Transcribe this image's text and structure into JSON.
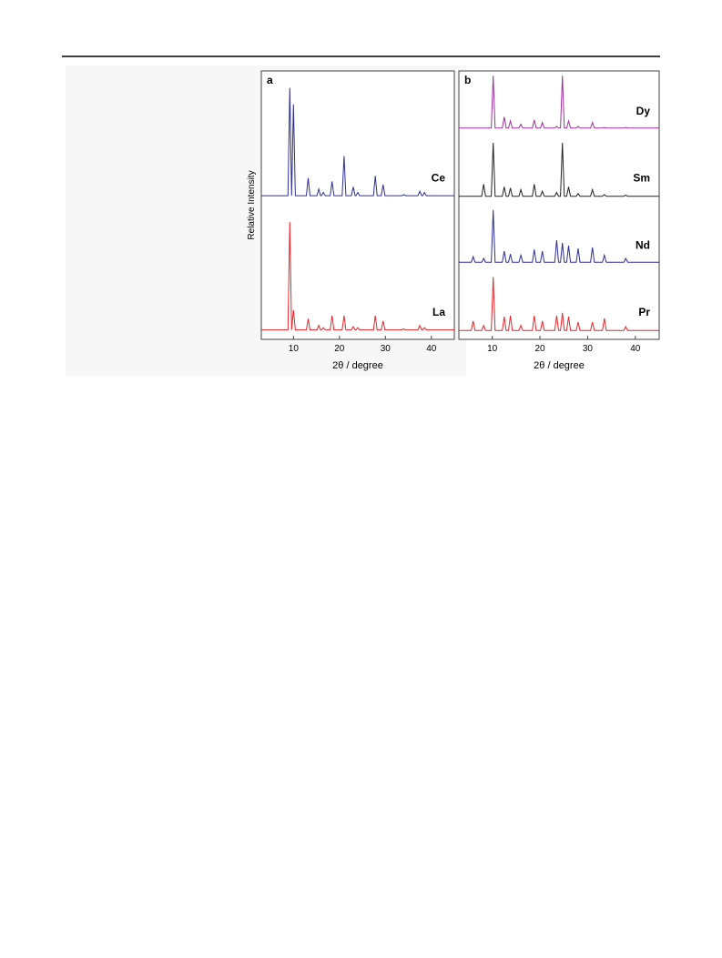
{
  "chart_data": [
    {
      "type": "line",
      "title": "a",
      "xlabel": "2θ / degree",
      "ylabel": "Relative Intensity",
      "xlim": [
        3,
        45
      ],
      "xticks": [
        10,
        20,
        30,
        40
      ],
      "series": [
        {
          "name": "Ce",
          "color": "#2e2e96",
          "x": [
            3,
            8.8,
            9.2,
            9.6,
            10.0,
            10.4,
            12.8,
            13.2,
            13.6,
            15.1,
            15.5,
            15.9,
            16.1,
            16.5,
            16.9,
            18.0,
            18.4,
            18.8,
            20.6,
            21.0,
            21.4,
            22.6,
            23.0,
            23.4,
            23.6,
            24.0,
            24.4,
            27.4,
            27.8,
            28.2,
            29.1,
            29.5,
            29.9,
            33.6,
            34.0,
            34.4,
            37.1,
            37.5,
            37.9,
            38.1,
            38.5,
            38.9,
            45
          ],
          "values": [
            2,
            2,
            100,
            2,
            85,
            2,
            2,
            18,
            2,
            2,
            8,
            2,
            2,
            5,
            2,
            2,
            15,
            2,
            2,
            38,
            2,
            2,
            10,
            2,
            2,
            5,
            2,
            2,
            20,
            2,
            2,
            12,
            2,
            2,
            3,
            2,
            2,
            6,
            2,
            2,
            5,
            2,
            2
          ]
        },
        {
          "name": "La",
          "color": "#e8262b",
          "x": [
            3,
            8.8,
            9.2,
            9.6,
            10.0,
            10.4,
            12.8,
            13.2,
            13.6,
            15.1,
            15.5,
            15.9,
            16.1,
            16.5,
            16.9,
            18.0,
            18.4,
            18.8,
            20.6,
            21.0,
            21.4,
            22.6,
            23.0,
            23.4,
            23.6,
            24.0,
            24.4,
            27.4,
            27.8,
            28.2,
            29.1,
            29.5,
            29.9,
            33.6,
            34.0,
            34.4,
            37.1,
            37.5,
            37.9,
            38.1,
            38.5,
            38.9,
            45
          ],
          "values": [
            2,
            2,
            100,
            2,
            20,
            2,
            2,
            12,
            2,
            2,
            6,
            2,
            2,
            4,
            2,
            2,
            15,
            2,
            2,
            15,
            2,
            2,
            5,
            2,
            2,
            4,
            2,
            2,
            15,
            2,
            2,
            10,
            2,
            2,
            3,
            2,
            2,
            6,
            2,
            2,
            4,
            2,
            2
          ]
        }
      ]
    },
    {
      "type": "line",
      "title": "b",
      "xlabel": "2θ / degree",
      "xlim": [
        3,
        45
      ],
      "xticks": [
        10,
        20,
        30,
        40
      ],
      "series": [
        {
          "name": "Dy",
          "color": "#a0309e",
          "x": [
            3,
            5.6,
            6.0,
            6.4,
            7.8,
            8.2,
            8.6,
            9.8,
            10.2,
            10.6,
            12.1,
            12.5,
            12.9,
            13.4,
            13.8,
            14.2,
            15.6,
            16.0,
            16.4,
            18.4,
            18.8,
            19.2,
            20.1,
            20.5,
            20.9,
            23.1,
            23.5,
            23.9,
            24.3,
            24.7,
            25.1,
            25.6,
            26.0,
            26.4,
            27.6,
            28.0,
            28.4,
            30.6,
            31.0,
            31.4,
            33.1,
            33.5,
            33.9,
            37.6,
            38.0,
            38.4,
            45
          ],
          "values": [
            5,
            5,
            5,
            5,
            5,
            5,
            5,
            5,
            100,
            5,
            5,
            25,
            5,
            5,
            18,
            5,
            5,
            12,
            5,
            5,
            20,
            5,
            5,
            15,
            5,
            5,
            8,
            5,
            5,
            100,
            5,
            5,
            18,
            5,
            5,
            8,
            5,
            5,
            15,
            5,
            5,
            6,
            5,
            5,
            6,
            5,
            5
          ]
        },
        {
          "name": "Sm",
          "color": "#222222",
          "x": [
            3,
            5.6,
            6.0,
            6.4,
            7.8,
            8.2,
            8.6,
            9.8,
            10.2,
            10.6,
            12.1,
            12.5,
            12.9,
            13.4,
            13.8,
            14.2,
            15.6,
            16.0,
            16.4,
            18.4,
            18.8,
            19.2,
            20.1,
            20.5,
            20.9,
            23.1,
            23.5,
            23.9,
            24.3,
            24.7,
            25.1,
            25.6,
            26.0,
            26.4,
            27.6,
            28.0,
            28.4,
            30.6,
            31.0,
            31.4,
            33.1,
            33.5,
            33.9,
            37.6,
            38.0,
            38.4,
            45
          ],
          "values": [
            3,
            3,
            3,
            3,
            3,
            25,
            3,
            3,
            100,
            3,
            3,
            20,
            3,
            3,
            18,
            3,
            3,
            15,
            3,
            3,
            25,
            3,
            3,
            12,
            3,
            3,
            10,
            3,
            3,
            100,
            3,
            3,
            20,
            3,
            3,
            8,
            3,
            3,
            15,
            3,
            3,
            6,
            3,
            3,
            5,
            3,
            3
          ]
        },
        {
          "name": "Nd",
          "color": "#2e2e96",
          "x": [
            3,
            5.6,
            6.0,
            6.4,
            7.8,
            8.2,
            8.6,
            9.8,
            10.2,
            10.6,
            12.1,
            12.5,
            12.9,
            13.4,
            13.8,
            14.2,
            15.6,
            16.0,
            16.4,
            18.4,
            18.8,
            19.2,
            20.1,
            20.5,
            20.9,
            23.1,
            23.5,
            23.9,
            24.3,
            24.7,
            25.1,
            25.6,
            26.0,
            26.4,
            27.6,
            28.0,
            28.4,
            30.6,
            31.0,
            31.4,
            33.1,
            33.5,
            33.9,
            37.6,
            38.0,
            38.4,
            45
          ],
          "values": [
            5,
            5,
            15,
            5,
            5,
            12,
            5,
            5,
            100,
            5,
            5,
            25,
            5,
            5,
            20,
            5,
            5,
            18,
            5,
            5,
            28,
            5,
            5,
            25,
            5,
            5,
            45,
            5,
            5,
            40,
            5,
            5,
            35,
            5,
            5,
            30,
            5,
            5,
            32,
            5,
            5,
            18,
            5,
            5,
            12,
            5,
            5
          ]
        },
        {
          "name": "Pr",
          "color": "#e8262b",
          "x": [
            3,
            5.6,
            6.0,
            6.4,
            7.8,
            8.2,
            8.6,
            9.8,
            10.2,
            10.6,
            12.1,
            12.5,
            12.9,
            13.4,
            13.8,
            14.2,
            15.6,
            16.0,
            16.4,
            18.4,
            18.8,
            19.2,
            20.1,
            20.5,
            20.9,
            23.1,
            23.5,
            23.9,
            24.3,
            24.7,
            25.1,
            25.6,
            26.0,
            26.4,
            27.6,
            28.0,
            28.4,
            30.6,
            31.0,
            31.4,
            33.1,
            33.5,
            33.9,
            37.6,
            38.0,
            38.4,
            45
          ],
          "values": [
            3,
            3,
            20,
            3,
            3,
            12,
            3,
            3,
            100,
            3,
            3,
            28,
            3,
            3,
            30,
            3,
            3,
            12,
            3,
            3,
            30,
            3,
            3,
            20,
            3,
            3,
            30,
            3,
            3,
            35,
            3,
            3,
            28,
            3,
            3,
            18,
            3,
            3,
            18,
            3,
            3,
            25,
            3,
            3,
            10,
            3,
            3
          ]
        }
      ]
    }
  ]
}
